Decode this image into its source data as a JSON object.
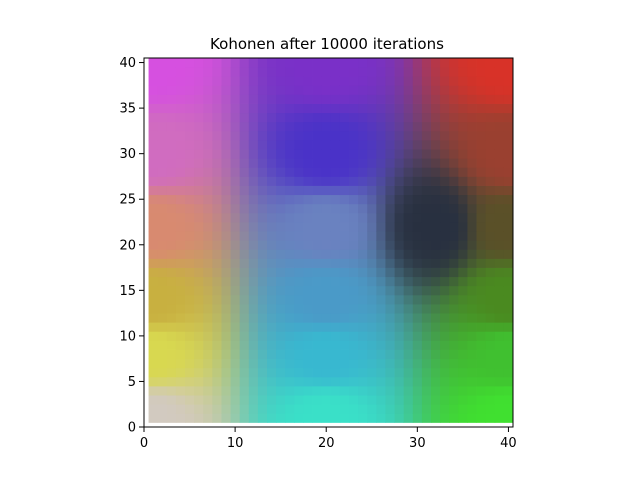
{
  "chart_data": {
    "type": "heatmap",
    "title": "Kohonen after 10000 iterations",
    "xlabel": "",
    "ylabel": "",
    "xlim": [
      0,
      40.5
    ],
    "ylim": [
      0,
      40.5
    ],
    "grid": false,
    "grid_size": 40,
    "x_ticks": [
      0,
      10,
      20,
      30,
      40
    ],
    "y_ticks": [
      0,
      5,
      10,
      15,
      20,
      25,
      30,
      35,
      40
    ],
    "x_tick_labels": [
      "0",
      "10",
      "20",
      "30",
      "40"
    ],
    "y_tick_labels": [
      "0",
      "5",
      "10",
      "15",
      "20",
      "25",
      "30",
      "35",
      "40"
    ],
    "colormap_control_points": [
      {
        "x": 1,
        "y": 40,
        "color": "#d650e0"
      },
      {
        "x": 20,
        "y": 40,
        "color": "#7a30c8"
      },
      {
        "x": 40,
        "y": 40,
        "color": "#d83228"
      },
      {
        "x": 1,
        "y": 30,
        "color": "#d06cc0"
      },
      {
        "x": 20,
        "y": 30,
        "color": "#4a32c8"
      },
      {
        "x": 40,
        "y": 30,
        "color": "#9a4030"
      },
      {
        "x": 1,
        "y": 22,
        "color": "#d88a70"
      },
      {
        "x": 20,
        "y": 22,
        "color": "#6a82c0"
      },
      {
        "x": 32,
        "y": 22,
        "color": "#283040"
      },
      {
        "x": 40,
        "y": 22,
        "color": "#5a5028"
      },
      {
        "x": 1,
        "y": 14,
        "color": "#c8b040"
      },
      {
        "x": 20,
        "y": 14,
        "color": "#4a9ac8"
      },
      {
        "x": 40,
        "y": 14,
        "color": "#4a8a20"
      },
      {
        "x": 1,
        "y": 8,
        "color": "#d8d850"
      },
      {
        "x": 20,
        "y": 8,
        "color": "#38b8d0"
      },
      {
        "x": 40,
        "y": 8,
        "color": "#40c030"
      },
      {
        "x": 1,
        "y": 1,
        "color": "#d2cac0"
      },
      {
        "x": 20,
        "y": 1,
        "color": "#3ae0c8"
      },
      {
        "x": 40,
        "y": 1,
        "color": "#40e030"
      }
    ]
  }
}
